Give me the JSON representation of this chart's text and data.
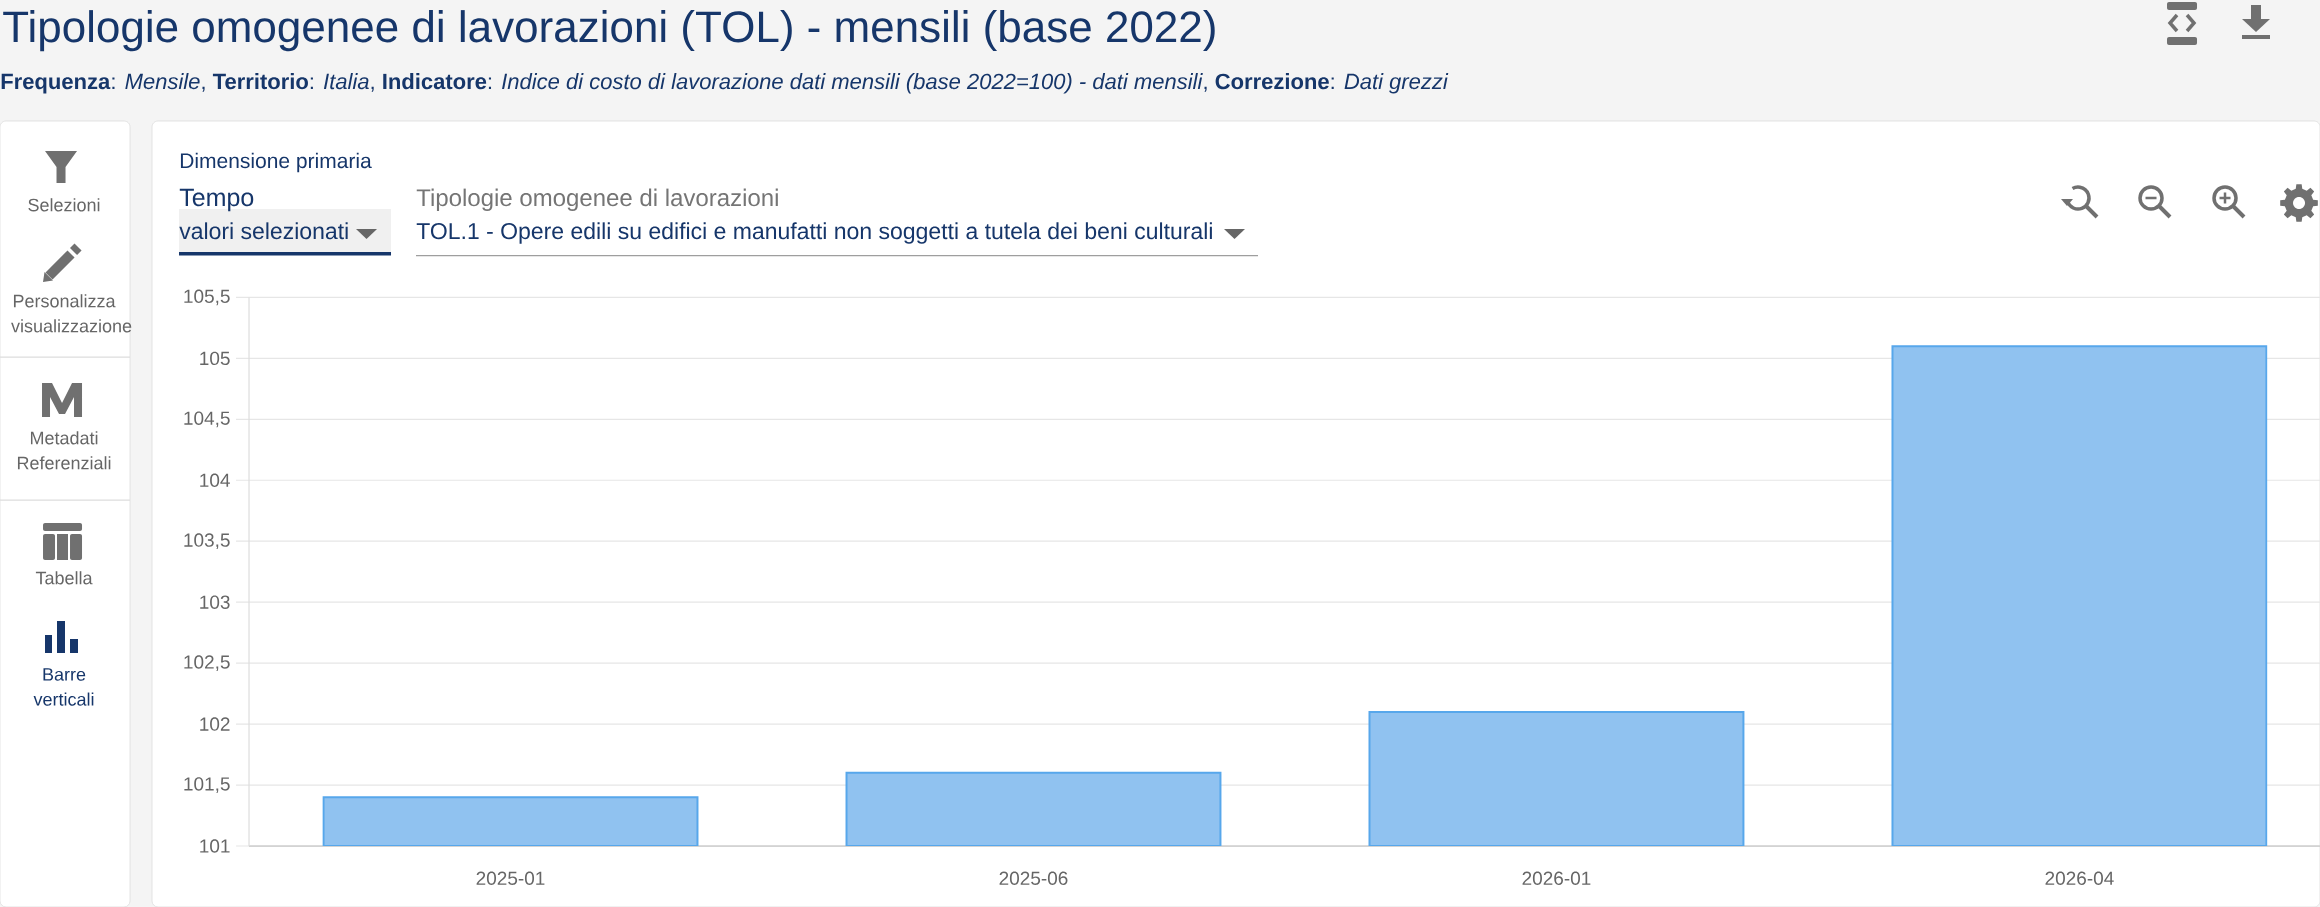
{
  "chart_data": {
    "type": "bar",
    "title": "Tipologie omogenee di lavorazioni (TOL) - mensili (base 2022)",
    "subtitle": "**Frequenza**: *Mensile*, **Territorio**: *Italia*, **Indicatore**: *Indice di costo di lavorazione dati mensili (base 2022=100) - dati mensili*, **Correzione**: *Dati grezzi*",
    "categories": [
      "2025-01",
      "2025-06",
      "2026-01",
      "2026-04"
    ],
    "values": [
      101.4,
      101.6,
      102.1,
      105.1
    ],
    "color": "#90c2f0",
    "ylim": [
      101,
      105.5
    ],
    "yticks": [
      101,
      {
        "value": 101.5,
        "label": "101,5"
      },
      102,
      {
        "value": 102.5,
        "label": "102,5"
      },
      103,
      {
        "value": 103.5,
        "label": "103,5"
      },
      104,
      {
        "value": 104.5,
        "label": "104,5"
      },
      105,
      {
        "value": 105.5,
        "label": "105,5"
      }
    ],
    "grid": "y",
    "annotations": [
      "Dimensione primaria",
      "Tempo",
      "valori selezionati",
      "Tipologie omogenee di lavorazioni",
      "TOL.1 - Opere edili su edifici e manufatti non soggetti a tutela dei beni culturali",
      "Selezioni",
      "Personalizza visualizzazione",
      "Metadati Referenziali",
      "Tabella",
      "Barre verticali"
    ]
  }
}
